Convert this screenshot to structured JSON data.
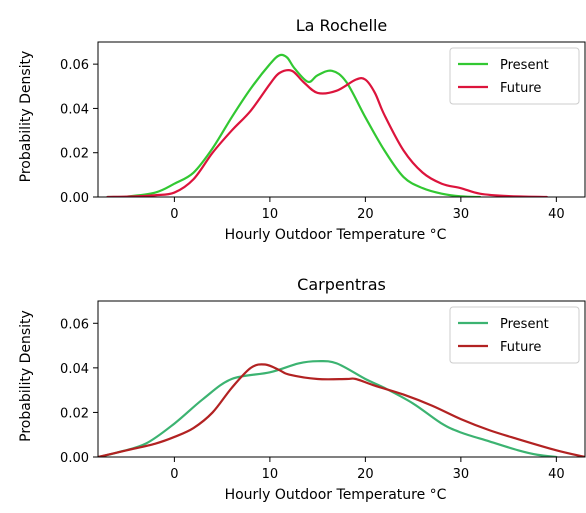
{
  "chart_data": [
    {
      "type": "line",
      "title": "La Rochelle",
      "xlabel": "Hourly Outdoor Temperature °C",
      "ylabel": "Probability Density",
      "xlim": [
        -8,
        43
      ],
      "ylim": [
        0,
        0.07
      ],
      "xticks": [
        0,
        10,
        20,
        30,
        40
      ],
      "yticks": [
        0.0,
        0.02,
        0.04,
        0.06
      ],
      "ytick_labels": [
        "0.00",
        "0.02",
        "0.04",
        "0.06"
      ],
      "grid": false,
      "legend": "top-right",
      "series": [
        {
          "name": "Present",
          "color": "#32c832",
          "x": [
            -7,
            -5,
            -2,
            0,
            2,
            4,
            6,
            8,
            10,
            11,
            11.8,
            12.6,
            14,
            15,
            16.5,
            18,
            20,
            22,
            24,
            26,
            28,
            30,
            32
          ],
          "y": [
            0.0,
            0.0002,
            0.002,
            0.006,
            0.011,
            0.022,
            0.036,
            0.049,
            0.06,
            0.064,
            0.063,
            0.058,
            0.052,
            0.055,
            0.057,
            0.052,
            0.036,
            0.021,
            0.009,
            0.004,
            0.0015,
            0.0003,
            0.0
          ]
        },
        {
          "name": "Future",
          "color": "#dc143c",
          "x": [
            -7,
            -4,
            -2,
            0,
            2,
            4,
            6,
            8,
            10,
            11,
            12.3,
            13.5,
            15,
            17,
            19,
            20,
            21,
            22,
            24,
            26,
            28,
            30,
            32,
            35,
            39
          ],
          "y": [
            0.0,
            0.0003,
            0.0008,
            0.002,
            0.008,
            0.02,
            0.03,
            0.039,
            0.051,
            0.056,
            0.057,
            0.052,
            0.047,
            0.048,
            0.053,
            0.053,
            0.047,
            0.037,
            0.021,
            0.011,
            0.006,
            0.004,
            0.0015,
            0.0004,
            0.0
          ]
        }
      ]
    },
    {
      "type": "line",
      "title": "Carpentras",
      "xlabel": "Hourly Outdoor Temperature °C",
      "ylabel": "Probability Density",
      "xlim": [
        -8,
        43
      ],
      "ylim": [
        0,
        0.07
      ],
      "xticks": [
        0,
        10,
        20,
        30,
        40
      ],
      "yticks": [
        0.0,
        0.02,
        0.04,
        0.06
      ],
      "ytick_labels": [
        "0.00",
        "0.02",
        "0.04",
        "0.06"
      ],
      "grid": false,
      "legend": "top-right",
      "series": [
        {
          "name": "Present",
          "color": "#3cb371",
          "x": [
            -8,
            -6,
            -3,
            0,
            3,
            6,
            10,
            13,
            15,
            17,
            20,
            22,
            25,
            28,
            30,
            33,
            36,
            38,
            40
          ],
          "y": [
            0.0,
            0.002,
            0.006,
            0.015,
            0.026,
            0.035,
            0.038,
            0.042,
            0.043,
            0.042,
            0.035,
            0.031,
            0.024,
            0.015,
            0.011,
            0.007,
            0.003,
            0.001,
            0.0
          ]
        },
        {
          "name": "Future",
          "color": "#b22222",
          "x": [
            -8,
            -5,
            -2,
            0,
            2,
            4,
            6,
            8,
            9.5,
            11,
            12,
            15,
            18,
            19,
            21,
            24,
            27,
            30,
            33,
            36,
            40,
            43
          ],
          "y": [
            0.0,
            0.003,
            0.006,
            0.009,
            0.013,
            0.02,
            0.031,
            0.04,
            0.0415,
            0.039,
            0.037,
            0.035,
            0.035,
            0.035,
            0.032,
            0.028,
            0.023,
            0.017,
            0.012,
            0.008,
            0.003,
            0.0
          ]
        }
      ]
    }
  ]
}
